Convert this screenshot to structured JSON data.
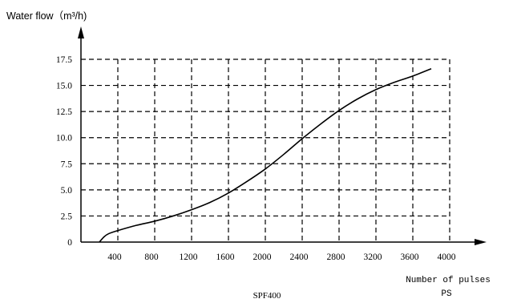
{
  "chart_data": {
    "type": "line",
    "title": "",
    "subtitle": "SPF400",
    "ylabel": "Water flow（m³/h)",
    "xlabel_line1": "Number of pulses",
    "xlabel_line2": "PS",
    "xlim": [
      0,
      4000
    ],
    "ylim": [
      0,
      17.5
    ],
    "xticks": [
      400,
      800,
      1200,
      1600,
      2000,
      2400,
      2800,
      3200,
      3600,
      4000
    ],
    "xtick_labels": [
      "400",
      "800",
      "1200",
      "1600",
      "2000",
      "2400",
      "2800",
      "3200",
      "3600",
      "4000"
    ],
    "yticks": [
      0,
      2.5,
      5,
      7.5,
      10,
      12.5,
      15,
      17.5
    ],
    "ytick_labels": [
      "0",
      "2.5",
      "5.0",
      "7.5",
      "10.0",
      "12.5",
      "15.0",
      "17.5"
    ],
    "grid": "dashed",
    "series": [
      {
        "color": "#000000",
        "x": [
          200,
          250,
          300,
          400,
          600,
          800,
          1000,
          1200,
          1400,
          1600,
          1800,
          2000,
          2200,
          2400,
          2600,
          2800,
          3000,
          3200,
          3400,
          3600,
          3800
        ],
        "y": [
          0,
          0.5,
          0.8,
          1.1,
          1.6,
          2.0,
          2.5,
          3.1,
          3.8,
          4.7,
          5.8,
          7.0,
          8.4,
          9.9,
          11.3,
          12.6,
          13.7,
          14.6,
          15.3,
          15.9,
          16.6
        ]
      }
    ]
  }
}
